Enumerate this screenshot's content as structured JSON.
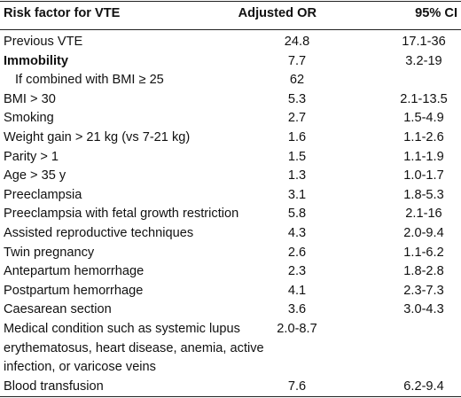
{
  "table": {
    "headers": {
      "factor": "Risk factor for VTE",
      "or": "Adjusted OR",
      "ci": "95% CI"
    },
    "rows": [
      {
        "factor": "Previous VTE",
        "or": "24.8",
        "ci": "17.1-36"
      },
      {
        "factor": "Immobility",
        "or": "7.7",
        "ci": "3.2-19",
        "bold": true
      },
      {
        "factor": "If combined with BMI ≥ 25",
        "or": "62",
        "ci": "",
        "indent": true
      },
      {
        "factor": "BMI > 30",
        "or": "5.3",
        "ci": "2.1-13.5"
      },
      {
        "factor": "Smoking",
        "or": "2.7",
        "ci": "1.5-4.9"
      },
      {
        "factor": "Weight gain > 21 kg (vs 7-21 kg)",
        "or": "1.6",
        "ci": "1.1-2.6"
      },
      {
        "factor": "Parity > 1",
        "or": "1.5",
        "ci": "1.1-1.9"
      },
      {
        "factor": "Age > 35 y",
        "or": "1.3",
        "ci": "1.0-1.7"
      },
      {
        "factor": "Preeclampsia",
        "or": "3.1",
        "ci": "1.8-5.3"
      },
      {
        "factor": "Preeclampsia with fetal growth restriction",
        "or": "5.8",
        "ci": "2.1-16"
      },
      {
        "factor": "Assisted reproductive techniques",
        "or": "4.3",
        "ci": "2.0-9.4"
      },
      {
        "factor": "Twin pregnancy",
        "or": "2.6",
        "ci": "1.1-6.2"
      },
      {
        "factor": "Antepartum hemorrhage",
        "or": "2.3",
        "ci": "1.8-2.8"
      },
      {
        "factor": "Postpartum hemorrhage",
        "or": "4.1",
        "ci": "2.3-7.3"
      },
      {
        "factor": "Caesarean section",
        "or": "3.6",
        "ci": "3.0-4.3"
      },
      {
        "factor": "Medical condition such as systemic lupus erythematosus, heart disease, anemia, active infection, or varicose veins",
        "or": "2.0-8.7",
        "ci": "",
        "multi": true
      },
      {
        "factor": "Blood transfusion",
        "or": "7.6",
        "ci": "6.2-9.4"
      }
    ]
  }
}
